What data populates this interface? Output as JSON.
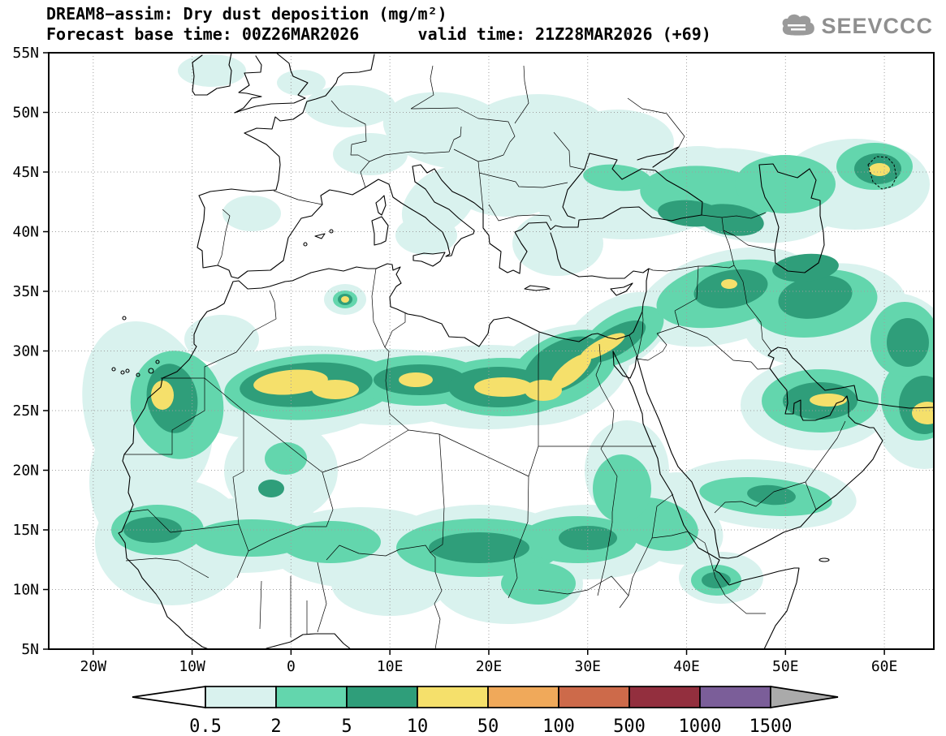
{
  "header": {
    "title_line1": "DREAM8−assim: Dry dust deposition (mg/m²)",
    "title_line2": "Forecast base time: 00Z26MAR2026      valid time: 21Z28MAR2026 (+69)"
  },
  "logo": {
    "text": "SEEVCCC"
  },
  "axes": {
    "lat_ticks": [
      {
        "label": "55N",
        "lat": 55
      },
      {
        "label": "50N",
        "lat": 50
      },
      {
        "label": "45N",
        "lat": 45
      },
      {
        "label": "40N",
        "lat": 40
      },
      {
        "label": "35N",
        "lat": 35
      },
      {
        "label": "30N",
        "lat": 30
      },
      {
        "label": "25N",
        "lat": 25
      },
      {
        "label": "20N",
        "lat": 20
      },
      {
        "label": "15N",
        "lat": 15
      },
      {
        "label": "10N",
        "lat": 10
      },
      {
        "label": "5N",
        "lat": 5
      }
    ],
    "lon_ticks": [
      {
        "label": "20W",
        "lon": -20
      },
      {
        "label": "10W",
        "lon": -10
      },
      {
        "label": "0",
        "lon": 0
      },
      {
        "label": "10E",
        "lon": 10
      },
      {
        "label": "20E",
        "lon": 20
      },
      {
        "label": "30E",
        "lon": 30
      },
      {
        "label": "40E",
        "lon": 40
      },
      {
        "label": "50E",
        "lon": 50
      },
      {
        "label": "60E",
        "lon": 60
      }
    ]
  },
  "colorbar": {
    "levels": [
      "0.5",
      "2",
      "5",
      "10",
      "50",
      "100",
      "500",
      "1000",
      "1500"
    ],
    "segment_colors": [
      "#d9f2ee",
      "#63d6ad",
      "#2f9e7a",
      "#f5e06b",
      "#f0a95a",
      "#cd6a4a",
      "#932f3e",
      "#7b5e99"
    ],
    "below_min_color": "#ffffff",
    "above_max_color": "#aaaaaa"
  },
  "chart_data": {
    "type": "heatmap",
    "title": "DREAM8−assim: Dry dust deposition (mg/m²)",
    "variable": "Dry dust deposition",
    "units": "mg/m²",
    "model": "DREAM8−assim",
    "forecast_base_time": "00Z26MAR2026",
    "valid_time": "21Z28MAR2026",
    "forecast_hour": "+69",
    "levels_mg_m2": [
      0.5,
      2,
      5,
      10,
      50,
      100,
      500,
      1000,
      1500
    ],
    "lat_axis": [
      "5N",
      "10N",
      "15N",
      "20N",
      "25N",
      "30N",
      "35N",
      "40N",
      "45N",
      "50N",
      "55N"
    ],
    "lon_axis": [
      "20W",
      "10W",
      "0",
      "10E",
      "20E",
      "30E",
      "40E",
      "50E",
      "60E"
    ],
    "max_shaded_band_mg_m2": "10–50",
    "high_deposition_regions": [
      "Central Algeria ~26–28N, 3W–7E",
      "Western Sahara / SW Morocco ~25–28N, 14W–11W",
      "Central Libya / Western Egypt ~26–28N, 19E–27E",
      "NE Egypt–Sinai ~29–31N, 28E–33E",
      "Northern Iraq ~35–36N, 43E–45E",
      "Persian Gulf / UAE ~25–27N, 52E–56E",
      "Aral Sea area ~45N, 58E–61E",
      "SE map corner ~24–26N, 63E–65E",
      "Sahel band ~13–16N, 17W–40E"
    ]
  }
}
